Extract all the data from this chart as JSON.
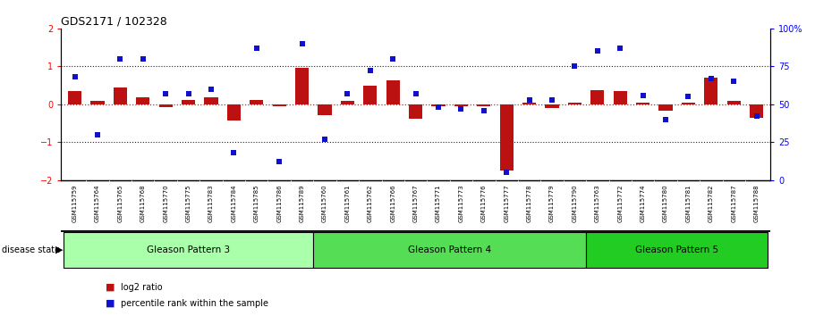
{
  "title": "GDS2171 / 102328",
  "samples": [
    "GSM115759",
    "GSM115764",
    "GSM115765",
    "GSM115768",
    "GSM115770",
    "GSM115775",
    "GSM115783",
    "GSM115784",
    "GSM115785",
    "GSM115786",
    "GSM115789",
    "GSM115760",
    "GSM115761",
    "GSM115762",
    "GSM115766",
    "GSM115767",
    "GSM115771",
    "GSM115773",
    "GSM115776",
    "GSM115777",
    "GSM115778",
    "GSM115779",
    "GSM115790",
    "GSM115763",
    "GSM115772",
    "GSM115774",
    "GSM115780",
    "GSM115781",
    "GSM115782",
    "GSM115787",
    "GSM115788"
  ],
  "log2_ratio": [
    0.35,
    0.08,
    0.45,
    0.18,
    -0.07,
    0.12,
    0.18,
    -0.42,
    0.12,
    -0.06,
    0.95,
    -0.28,
    0.08,
    0.5,
    0.62,
    -0.38,
    -0.06,
    -0.06,
    -0.06,
    -1.75,
    0.05,
    -0.1,
    0.05,
    0.38,
    0.34,
    0.04,
    -0.18,
    0.04,
    0.7,
    0.1,
    -0.35
  ],
  "percentile": [
    68,
    30,
    80,
    80,
    57,
    57,
    60,
    18,
    87,
    12,
    90,
    27,
    57,
    72,
    80,
    57,
    48,
    47,
    46,
    5,
    53,
    53,
    75,
    85,
    87,
    56,
    40,
    55,
    67,
    65,
    42
  ],
  "groups": [
    {
      "name": "Gleason Pattern 3",
      "start": 0,
      "end": 10,
      "color": "#aaffaa"
    },
    {
      "name": "Gleason Pattern 4",
      "start": 11,
      "end": 22,
      "color": "#55dd55"
    },
    {
      "name": "Gleason Pattern 5",
      "start": 23,
      "end": 30,
      "color": "#22cc22"
    }
  ],
  "ylim": [
    -2,
    2
  ],
  "y2lim": [
    0,
    100
  ],
  "bar_color": "#bb1111",
  "dot_color": "#1111cc",
  "bg_color": "#ffffff",
  "plot_bg": "#ffffff",
  "hline_color": "#cc2222",
  "dotted_color": "#222222",
  "tick_bg": "#cccccc",
  "label_log2": "log2 ratio",
  "label_pct": "percentile rank within the sample"
}
